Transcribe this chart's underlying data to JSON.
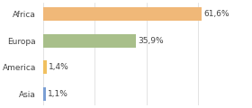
{
  "categories": [
    "Asia",
    "America",
    "Europa",
    "Africa"
  ],
  "values": [
    1.1,
    1.4,
    35.9,
    61.6
  ],
  "labels": [
    "1,1%",
    "1,4%",
    "35,9%",
    "61,6%"
  ],
  "bar_colors": [
    "#7b9fd4",
    "#f0c060",
    "#a8bf8a",
    "#f0b878"
  ],
  "background_color": "#ffffff",
  "xlim": [
    0,
    80
  ],
  "label_fontsize": 6.5,
  "tick_fontsize": 6.5,
  "bar_height": 0.5
}
